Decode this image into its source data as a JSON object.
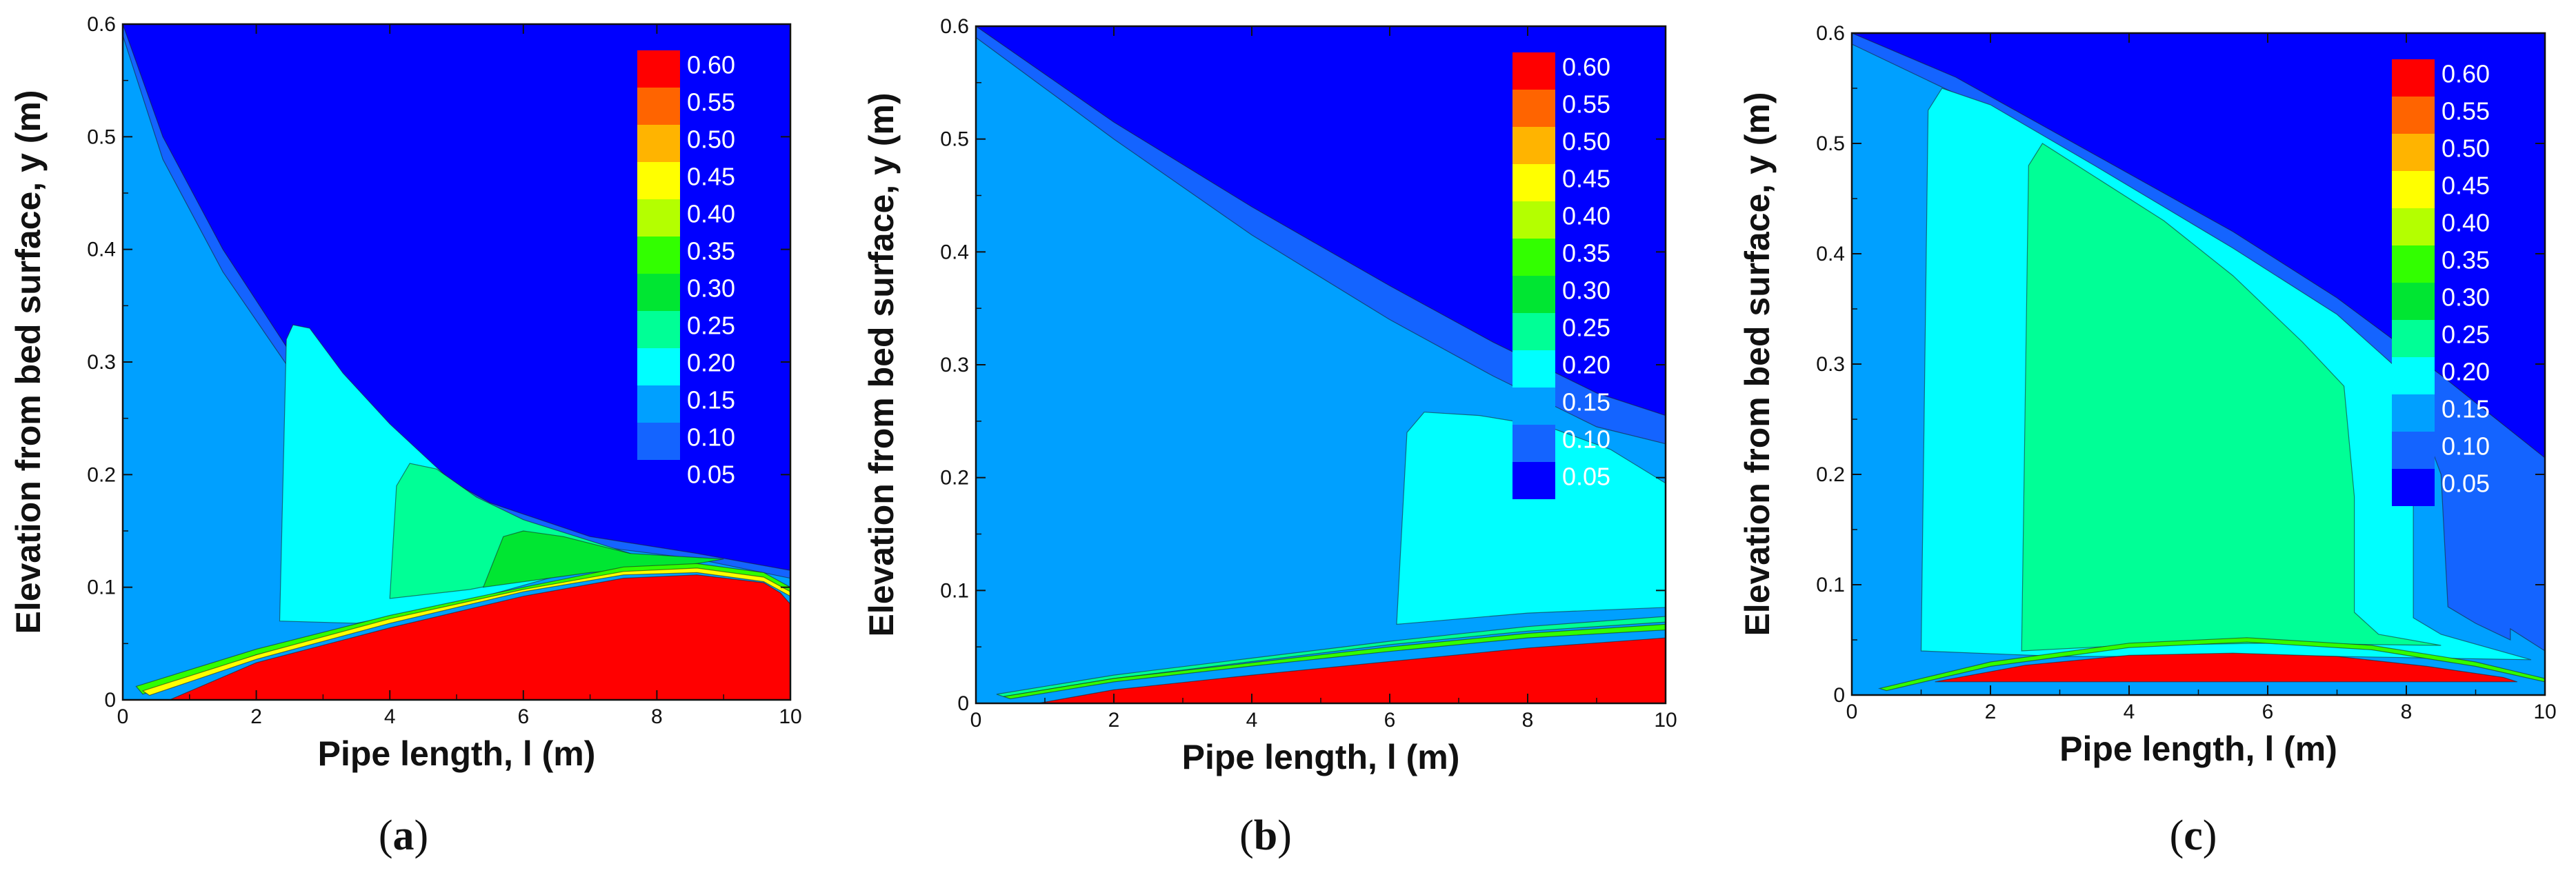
{
  "colors": {
    "levels": [
      "#0000ff",
      "#1464ff",
      "#00a0ff",
      "#00ffff",
      "#00ff96",
      "#00e632",
      "#32ff00",
      "#b4ff00",
      "#ffff00",
      "#ffb400",
      "#ff6400",
      "#ff0000"
    ],
    "background": "#ffffff",
    "axis": "#111111"
  },
  "chart_data": [
    {
      "type": "heatmap",
      "panel": "a",
      "caption_letter": "a",
      "xlabel": "Pipe length, l (m)",
      "ylabel": "Elevation from bed surface, y (m)",
      "xlim": [
        0,
        10
      ],
      "ylim": [
        0,
        0.6
      ],
      "xticks": [
        "0",
        "2",
        "4",
        "6",
        "8",
        "10"
      ],
      "yticks": [
        "0",
        "0.1",
        "0.2",
        "0.3",
        "0.4",
        "0.5",
        "0.6"
      ],
      "legend_levels": [
        "0.60",
        "0.55",
        "0.50",
        "0.45",
        "0.40",
        "0.35",
        "0.30",
        "0.25",
        "0.20",
        "0.15",
        "0.10",
        "0.05"
      ],
      "regions": [
        {
          "level": 0.1,
          "points": [
            [
              0,
              0.6
            ],
            [
              0.6,
              0.5
            ],
            [
              1.5,
              0.4
            ],
            [
              2.6,
              0.3
            ],
            [
              4.0,
              0.225
            ],
            [
              5.5,
              0.175
            ],
            [
              7.0,
              0.145
            ],
            [
              8.6,
              0.13
            ],
            [
              10,
              0.115
            ],
            [
              10,
              0
            ],
            [
              0,
              0
            ]
          ]
        },
        {
          "level": 0.15,
          "points": [
            [
              0,
              0.59
            ],
            [
              0.6,
              0.48
            ],
            [
              1.5,
              0.38
            ],
            [
              2.6,
              0.285
            ],
            [
              4.0,
              0.21
            ],
            [
              5.5,
              0.165
            ],
            [
              7.0,
              0.137
            ],
            [
              8.6,
              0.125
            ],
            [
              10,
              0.108
            ],
            [
              10,
              0
            ],
            [
              0,
              0
            ]
          ]
        },
        {
          "level": 0.2,
          "points": [
            [
              2.35,
              0.07
            ],
            [
              2.45,
              0.32
            ],
            [
              2.55,
              0.333
            ],
            [
              2.8,
              0.33
            ],
            [
              3.3,
              0.29
            ],
            [
              4.0,
              0.245
            ],
            [
              5.0,
              0.19
            ],
            [
              6.0,
              0.155
            ],
            [
              7.0,
              0.14
            ],
            [
              7.5,
              0.13
            ],
            [
              6.5,
              0.11
            ],
            [
              5.0,
              0.085
            ],
            [
              3.5,
              0.068
            ]
          ]
        },
        {
          "level": 0.25,
          "points": [
            [
              4.0,
              0.09
            ],
            [
              4.1,
              0.19
            ],
            [
              4.3,
              0.21
            ],
            [
              4.7,
              0.205
            ],
            [
              5.3,
              0.18
            ],
            [
              6.0,
              0.16
            ],
            [
              6.8,
              0.145
            ],
            [
              7.6,
              0.13
            ],
            [
              6.5,
              0.113
            ],
            [
              5.2,
              0.098
            ]
          ]
        },
        {
          "level": 0.3,
          "points": [
            [
              5.4,
              0.1
            ],
            [
              5.7,
              0.145
            ],
            [
              6.0,
              0.15
            ],
            [
              6.6,
              0.145
            ],
            [
              7.6,
              0.13
            ],
            [
              9.0,
              0.125
            ],
            [
              8.5,
              0.12
            ],
            [
              7.0,
              0.113
            ]
          ]
        },
        {
          "level": 0.35,
          "points": [
            [
              0.2,
              0.012
            ],
            [
              2.0,
              0.045
            ],
            [
              4.0,
              0.075
            ],
            [
              6.0,
              0.1
            ],
            [
              7.5,
              0.118
            ],
            [
              8.6,
              0.121
            ],
            [
              9.6,
              0.113
            ],
            [
              10,
              0.1
            ],
            [
              10,
              0.095
            ],
            [
              9.6,
              0.108
            ],
            [
              8.6,
              0.116
            ],
            [
              7.5,
              0.113
            ],
            [
              6.0,
              0.097
            ],
            [
              4.0,
              0.07
            ],
            [
              2.0,
              0.04
            ],
            [
              0.3,
              0.005
            ]
          ]
        },
        {
          "level": 0.45,
          "points": [
            [
              0.3,
              0.008
            ],
            [
              2.0,
              0.04
            ],
            [
              4.0,
              0.072
            ],
            [
              6.0,
              0.098
            ],
            [
              7.5,
              0.114
            ],
            [
              8.6,
              0.117
            ],
            [
              9.6,
              0.109
            ],
            [
              10,
              0.096
            ],
            [
              10,
              0.092
            ],
            [
              9.6,
              0.105
            ],
            [
              8.6,
              0.113
            ],
            [
              7.5,
              0.111
            ],
            [
              6.0,
              0.096
            ],
            [
              4.0,
              0.068
            ],
            [
              2.0,
              0.036
            ],
            [
              0.4,
              0.004
            ]
          ]
        },
        {
          "level": 0.6,
          "points": [
            [
              0.7,
              0
            ],
            [
              2.0,
              0.033
            ],
            [
              4.0,
              0.064
            ],
            [
              6.0,
              0.092
            ],
            [
              7.5,
              0.108
            ],
            [
              8.6,
              0.111
            ],
            [
              9.6,
              0.104
            ],
            [
              9.85,
              0.095
            ],
            [
              10,
              0.085
            ],
            [
              10,
              0
            ]
          ]
        }
      ]
    },
    {
      "type": "heatmap",
      "panel": "b",
      "caption_letter": "b",
      "xlabel": "Pipe length, l (m)",
      "ylabel": "Elevation from bed surface, y (m)",
      "xlim": [
        0,
        10
      ],
      "ylim": [
        0,
        0.6
      ],
      "xticks": [
        "0",
        "2",
        "4",
        "6",
        "8",
        "10"
      ],
      "yticks": [
        "0",
        "0.1",
        "0.2",
        "0.3",
        "0.4",
        "0.5",
        "0.6"
      ],
      "legend_levels": [
        "0.60",
        "0.55",
        "0.50",
        "0.45",
        "0.40",
        "0.35",
        "0.30",
        "0.25",
        "0.20",
        "0.15",
        "0.10",
        "0.05"
      ],
      "regions": [
        {
          "level": 0.1,
          "points": [
            [
              0,
              0.6
            ],
            [
              2.0,
              0.515
            ],
            [
              4.0,
              0.44
            ],
            [
              6.0,
              0.37
            ],
            [
              7.5,
              0.32
            ],
            [
              9.0,
              0.275
            ],
            [
              10,
              0.255
            ],
            [
              10,
              0
            ],
            [
              0,
              0
            ]
          ]
        },
        {
          "level": 0.15,
          "points": [
            [
              0,
              0.59
            ],
            [
              2.0,
              0.5
            ],
            [
              4.0,
              0.415
            ],
            [
              6.0,
              0.34
            ],
            [
              7.5,
              0.29
            ],
            [
              9.0,
              0.245
            ],
            [
              10,
              0.23
            ],
            [
              10,
              0
            ],
            [
              0,
              0
            ]
          ]
        },
        {
          "level": 0.2,
          "points": [
            [
              6.1,
              0.07
            ],
            [
              6.25,
              0.24
            ],
            [
              6.5,
              0.258
            ],
            [
              7.3,
              0.255
            ],
            [
              8.3,
              0.245
            ],
            [
              9.2,
              0.225
            ],
            [
              10,
              0.195
            ],
            [
              10,
              0.085
            ],
            [
              8.0,
              0.08
            ]
          ]
        },
        {
          "level": 0.25,
          "points": [
            [
              0.3,
              0.008
            ],
            [
              2.0,
              0.025
            ],
            [
              4.0,
              0.04
            ],
            [
              6.0,
              0.055
            ],
            [
              8.0,
              0.068
            ],
            [
              10,
              0.077
            ],
            [
              10,
              0.072
            ],
            [
              8.0,
              0.064
            ],
            [
              6.0,
              0.052
            ],
            [
              4.0,
              0.037
            ],
            [
              2.0,
              0.022
            ],
            [
              0.4,
              0.006
            ]
          ]
        },
        {
          "level": 0.35,
          "points": [
            [
              0.4,
              0.006
            ],
            [
              2.0,
              0.022
            ],
            [
              4.0,
              0.036
            ],
            [
              6.0,
              0.05
            ],
            [
              8.0,
              0.062
            ],
            [
              10,
              0.07
            ],
            [
              10,
              0.065
            ],
            [
              8.0,
              0.058
            ],
            [
              6.0,
              0.046
            ],
            [
              4.0,
              0.033
            ],
            [
              2.0,
              0.019
            ],
            [
              0.5,
              0.004
            ]
          ]
        },
        {
          "level": 0.6,
          "points": [
            [
              0.9,
              0
            ],
            [
              2.0,
              0.012
            ],
            [
              4.0,
              0.025
            ],
            [
              6.0,
              0.037
            ],
            [
              8.0,
              0.049
            ],
            [
              10,
              0.058
            ],
            [
              10,
              0
            ]
          ]
        }
      ]
    },
    {
      "type": "heatmap",
      "panel": "c",
      "caption_letter": "c",
      "xlabel": "Pipe length, l (m)",
      "ylabel": "Elevation from bed surface, y (m)",
      "xlim": [
        0,
        10
      ],
      "ylim": [
        0,
        0.6
      ],
      "xticks": [
        "0",
        "2",
        "4",
        "6",
        "8",
        "10"
      ],
      "yticks": [
        "0",
        "0.1",
        "0.2",
        "0.3",
        "0.4",
        "0.5",
        "0.6"
      ],
      "legend_levels": [
        "0.60",
        "0.55",
        "0.50",
        "0.45",
        "0.40",
        "0.35",
        "0.30",
        "0.25",
        "0.20",
        "0.15",
        "0.10",
        "0.05"
      ],
      "regions": [
        {
          "level": 0.1,
          "points": [
            [
              0,
              0.6
            ],
            [
              1.5,
              0.56
            ],
            [
              3.5,
              0.49
            ],
            [
              5.5,
              0.42
            ],
            [
              7.0,
              0.36
            ],
            [
              8.5,
              0.29
            ],
            [
              9.4,
              0.245
            ],
            [
              10,
              0.215
            ],
            [
              10,
              0
            ],
            [
              0,
              0
            ]
          ]
        },
        {
          "level": 0.15,
          "points": [
            [
              0,
              0.59
            ],
            [
              1.5,
              0.545
            ],
            [
              3.5,
              0.475
            ],
            [
              5.5,
              0.4
            ],
            [
              7.0,
              0.34
            ],
            [
              8.0,
              0.285
            ],
            [
              8.5,
              0.2
            ],
            [
              8.6,
              0.08
            ],
            [
              9.0,
              0.065
            ],
            [
              9.5,
              0.05
            ],
            [
              9.5,
              0.06
            ],
            [
              10,
              0.04
            ],
            [
              10,
              0
            ],
            [
              0,
              0
            ]
          ]
        },
        {
          "level": 0.2,
          "points": [
            [
              1.0,
              0.04
            ],
            [
              1.1,
              0.53
            ],
            [
              1.3,
              0.55
            ],
            [
              2.0,
              0.535
            ],
            [
              3.5,
              0.48
            ],
            [
              5.5,
              0.405
            ],
            [
              7.0,
              0.345
            ],
            [
              7.8,
              0.3
            ],
            [
              8.1,
              0.24
            ],
            [
              8.1,
              0.07
            ],
            [
              8.5,
              0.055
            ],
            [
              9.8,
              0.032
            ],
            [
              7.0,
              0.035
            ],
            [
              3.0,
              0.035
            ]
          ]
        },
        {
          "level": 0.25,
          "points": [
            [
              2.45,
              0.04
            ],
            [
              2.55,
              0.48
            ],
            [
              2.75,
              0.5
            ],
            [
              3.5,
              0.47
            ],
            [
              4.5,
              0.43
            ],
            [
              5.5,
              0.38
            ],
            [
              6.5,
              0.32
            ],
            [
              7.1,
              0.28
            ],
            [
              7.25,
              0.18
            ],
            [
              7.25,
              0.075
            ],
            [
              7.6,
              0.055
            ],
            [
              8.5,
              0.045
            ],
            [
              6.0,
              0.047
            ],
            [
              4.0,
              0.045
            ]
          ]
        },
        {
          "level": 0.35,
          "points": [
            [
              0.4,
              0.006
            ],
            [
              2.0,
              0.03
            ],
            [
              4.0,
              0.047
            ],
            [
              5.7,
              0.052
            ],
            [
              7.5,
              0.045
            ],
            [
              9.0,
              0.03
            ],
            [
              10,
              0.015
            ],
            [
              10,
              0.012
            ],
            [
              9.0,
              0.026
            ],
            [
              7.5,
              0.041
            ],
            [
              5.7,
              0.048
            ],
            [
              4.0,
              0.043
            ],
            [
              2.0,
              0.026
            ],
            [
              0.5,
              0.004
            ]
          ]
        },
        {
          "level": 0.6,
          "points": [
            [
              1.2,
              0.012
            ],
            [
              2.5,
              0.027
            ],
            [
              4.0,
              0.036
            ],
            [
              5.5,
              0.038
            ],
            [
              7.0,
              0.035
            ],
            [
              8.3,
              0.026
            ],
            [
              9.4,
              0.016
            ],
            [
              9.6,
              0.012
            ]
          ]
        }
      ]
    }
  ]
}
